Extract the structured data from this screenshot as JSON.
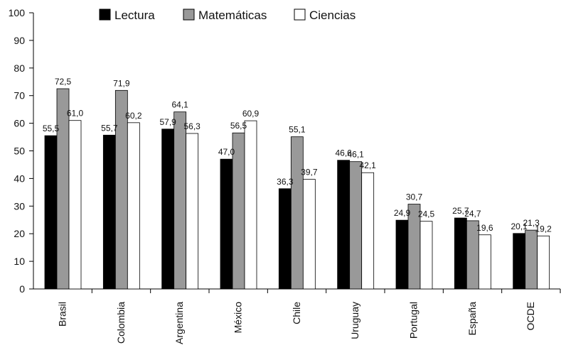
{
  "chart_data": {
    "type": "bar",
    "categories": [
      "Brasil",
      "Colombia",
      "Argentina",
      "México",
      "Chile",
      "Uruguay",
      "Portugal",
      "España",
      "OCDE"
    ],
    "series": [
      {
        "name": "Lectura",
        "color": "#000000",
        "values": [
          55.5,
          55.7,
          57.9,
          47.0,
          36.3,
          46.6,
          24.9,
          25.7,
          20.1
        ],
        "labels": [
          "55,5",
          "55,7",
          "57,9",
          "47,0",
          "36,3",
          "46,6",
          "24,9",
          "25,7",
          "20,1"
        ]
      },
      {
        "name": "Matemáticas",
        "color": "#999999",
        "values": [
          72.5,
          71.9,
          64.1,
          56.5,
          55.1,
          46.1,
          30.7,
          24.7,
          21.3
        ],
        "labels": [
          "72,5",
          "71,9",
          "64,1",
          "56,5",
          "55,1",
          "46,1",
          "30,7",
          "24,7",
          "21,3"
        ]
      },
      {
        "name": "Ciencias",
        "color": "#ffffff",
        "values": [
          61.0,
          60.2,
          56.3,
          60.9,
          39.7,
          42.1,
          24.5,
          19.6,
          19.2
        ],
        "labels": [
          "61,0",
          "60,2",
          "56,3",
          "60,9",
          "39,7",
          "42,1",
          "24,5",
          "19,6",
          "19,2"
        ]
      }
    ],
    "ylim": [
      0,
      100
    ],
    "yticks": [
      0,
      10,
      20,
      30,
      40,
      50,
      60,
      70,
      80,
      90,
      100
    ],
    "legend_position": "top",
    "grid": false
  }
}
